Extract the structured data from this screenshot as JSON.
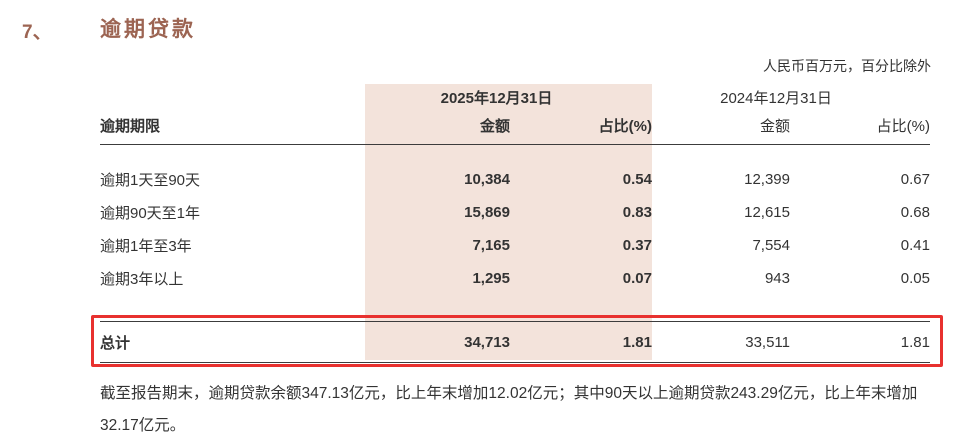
{
  "page": {
    "section_number": "7、",
    "section_title": "逾期贷款",
    "unit_note": "人民币百万元，百分比除外"
  },
  "table": {
    "period_headers": [
      "2025年12月31日",
      "2024年12月31日"
    ],
    "col_headers": {
      "term": "逾期期限",
      "amount": "金额",
      "ratio": "占比(%)"
    },
    "rows": [
      {
        "label": "逾期1天至90天",
        "amount_2025": "10,384",
        "ratio_2025": "0.54",
        "amount_2024": "12,399",
        "ratio_2024": "0.67"
      },
      {
        "label": "逾期90天至1年",
        "amount_2025": "15,869",
        "ratio_2025": "0.83",
        "amount_2024": "12,615",
        "ratio_2024": "0.68"
      },
      {
        "label": "逾期1年至3年",
        "amount_2025": "7,165",
        "ratio_2025": "0.37",
        "amount_2024": "7,554",
        "ratio_2024": "0.41"
      },
      {
        "label": "逾期3年以上",
        "amount_2025": "1,295",
        "ratio_2025": "0.07",
        "amount_2024": "943",
        "ratio_2024": "0.05"
      }
    ],
    "total": {
      "label": "总计",
      "amount_2025": "34,713",
      "ratio_2025": "1.81",
      "amount_2024": "33,511",
      "ratio_2024": "1.81"
    }
  },
  "footer": {
    "paragraph": "截至报告期末，逾期贷款余额347.13亿元，比上年末增加12.02亿元；其中90天以上逾期贷款243.29亿元，比上年末增加32.17亿元。"
  },
  "colors": {
    "heading_brown": "#9c6452",
    "highlight_band": "#f3e3db",
    "annotation_red": "#e8312f",
    "body_text": "#333333"
  }
}
